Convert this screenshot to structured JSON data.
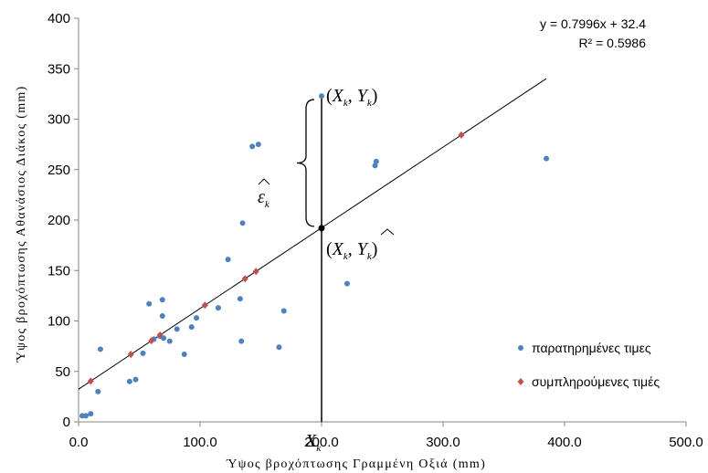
{
  "chart_data": {
    "type": "scatter",
    "title": "",
    "xlabel": "Ύψος βροχόπτωσης Γραμμένη Οξιά (mm)",
    "ylabel": "Ύψος βροχόπτωσης Αθανάσιος Διάκος (mm)",
    "xlim": [
      0,
      500
    ],
    "ylim": [
      0,
      400
    ],
    "x_ticks": [
      "0.0",
      "100.0",
      "200.0",
      "300.0",
      "400.0",
      "500.0"
    ],
    "y_ticks": [
      "0",
      "50",
      "100",
      "150",
      "200",
      "250",
      "300",
      "350",
      "400"
    ],
    "grid": false,
    "legend_position": "right",
    "trendline": {
      "slope": 0.7996,
      "intercept": 32.4,
      "x_range": [
        0,
        385
      ],
      "equation_label": "y = 0.7996x + 32.4",
      "r2_label": "R² = 0.5986"
    },
    "series": [
      {
        "name": "παρατηρημένες τιμες",
        "color": "#4f81bd",
        "marker": "circle",
        "points": [
          [
            3,
            6
          ],
          [
            6,
            6
          ],
          [
            10,
            8
          ],
          [
            16,
            30
          ],
          [
            18,
            72
          ],
          [
            42,
            40
          ],
          [
            47,
            42
          ],
          [
            53,
            68
          ],
          [
            58,
            117
          ],
          [
            62,
            82
          ],
          [
            67,
            85
          ],
          [
            69,
            121
          ],
          [
            69,
            105
          ],
          [
            70,
            83
          ],
          [
            75,
            80
          ],
          [
            81,
            92
          ],
          [
            87,
            67
          ],
          [
            93,
            94
          ],
          [
            97,
            103
          ],
          [
            115,
            113
          ],
          [
            123,
            161
          ],
          [
            133,
            122
          ],
          [
            134,
            80
          ],
          [
            135,
            197
          ],
          [
            143,
            273
          ],
          [
            148,
            275
          ],
          [
            165,
            74
          ],
          [
            169,
            110
          ],
          [
            200,
            323
          ],
          [
            221,
            137
          ],
          [
            244,
            254
          ],
          [
            245,
            258
          ],
          [
            385,
            261
          ]
        ]
      },
      {
        "name": "συμπληρούμενες τιμές",
        "color": "#c0504d",
        "marker": "diamond",
        "points": [
          [
            10,
            40.4
          ],
          [
            43,
            66.8
          ],
          [
            60,
            80.4
          ],
          [
            67,
            86.0
          ],
          [
            104,
            115.6
          ],
          [
            137,
            141.9
          ],
          [
            146,
            149.1
          ],
          [
            315,
            284.3
          ]
        ]
      }
    ],
    "annotations": {
      "highlight_x": 200,
      "observed_y": 323,
      "fitted_y": 192,
      "observed_label": "(X_k, Y_k)",
      "fitted_label": "(X_k, Ŷ_k)",
      "residual_label": "ε̂_k",
      "x_marker_label": "X_k"
    }
  }
}
